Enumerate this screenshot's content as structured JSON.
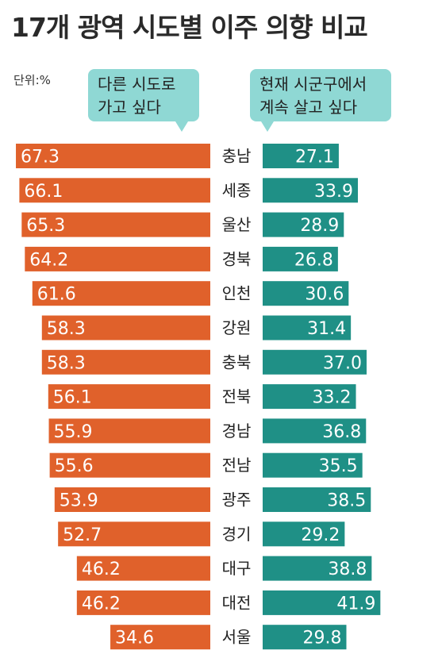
{
  "header": {
    "title": "17개 광역 시도별 이주 의향 비교",
    "unit": "단위:%"
  },
  "legend": {
    "left_line1": "다른 시도로",
    "left_line2": "가고 싶다",
    "right_line1": "현재 시군구에서",
    "right_line2": "계속 살고 싶다"
  },
  "colors": {
    "left_bar": "#e0612b",
    "right_bar": "#1f9086",
    "bubble": "#8fd8d4",
    "value_text": "#ffffff",
    "category_text": "#222222"
  },
  "chart_data": {
    "type": "bar",
    "orientation": "horizontal-diverging",
    "title": "17개 광역 시도별 이주 의향 비교",
    "unit": "%",
    "categories": [
      "충남",
      "세종",
      "울산",
      "경북",
      "인천",
      "강원",
      "충북",
      "전북",
      "경남",
      "전남",
      "광주",
      "경기",
      "대구",
      "대전",
      "서울"
    ],
    "series": [
      {
        "name": "다른 시도로 가고 싶다",
        "values": [
          67.3,
          66.1,
          65.3,
          64.2,
          61.6,
          58.3,
          58.3,
          56.1,
          55.9,
          55.6,
          53.9,
          52.7,
          46.2,
          46.2,
          34.6
        ]
      },
      {
        "name": "현재 시군구에서 계속 살고 싶다",
        "values": [
          27.1,
          33.9,
          28.9,
          26.8,
          30.6,
          31.4,
          37.0,
          33.2,
          36.8,
          35.5,
          38.5,
          29.2,
          38.8,
          41.9,
          29.8
        ]
      }
    ],
    "value_labels": {
      "left": [
        "67.3",
        "66.1",
        "65.3",
        "64.2",
        "61.6",
        "58.3",
        "58.3",
        "56.1",
        "55.9",
        "55.6",
        "53.9",
        "52.7",
        "46.2",
        "46.2",
        "34.6"
      ],
      "right": [
        "27.1",
        "33.9",
        "28.9",
        "26.8",
        "30.6",
        "31.4",
        "37.0",
        "33.2",
        "36.8",
        "35.5",
        "38.5",
        "29.2",
        "38.8",
        "41.9",
        "29.8"
      ]
    }
  }
}
